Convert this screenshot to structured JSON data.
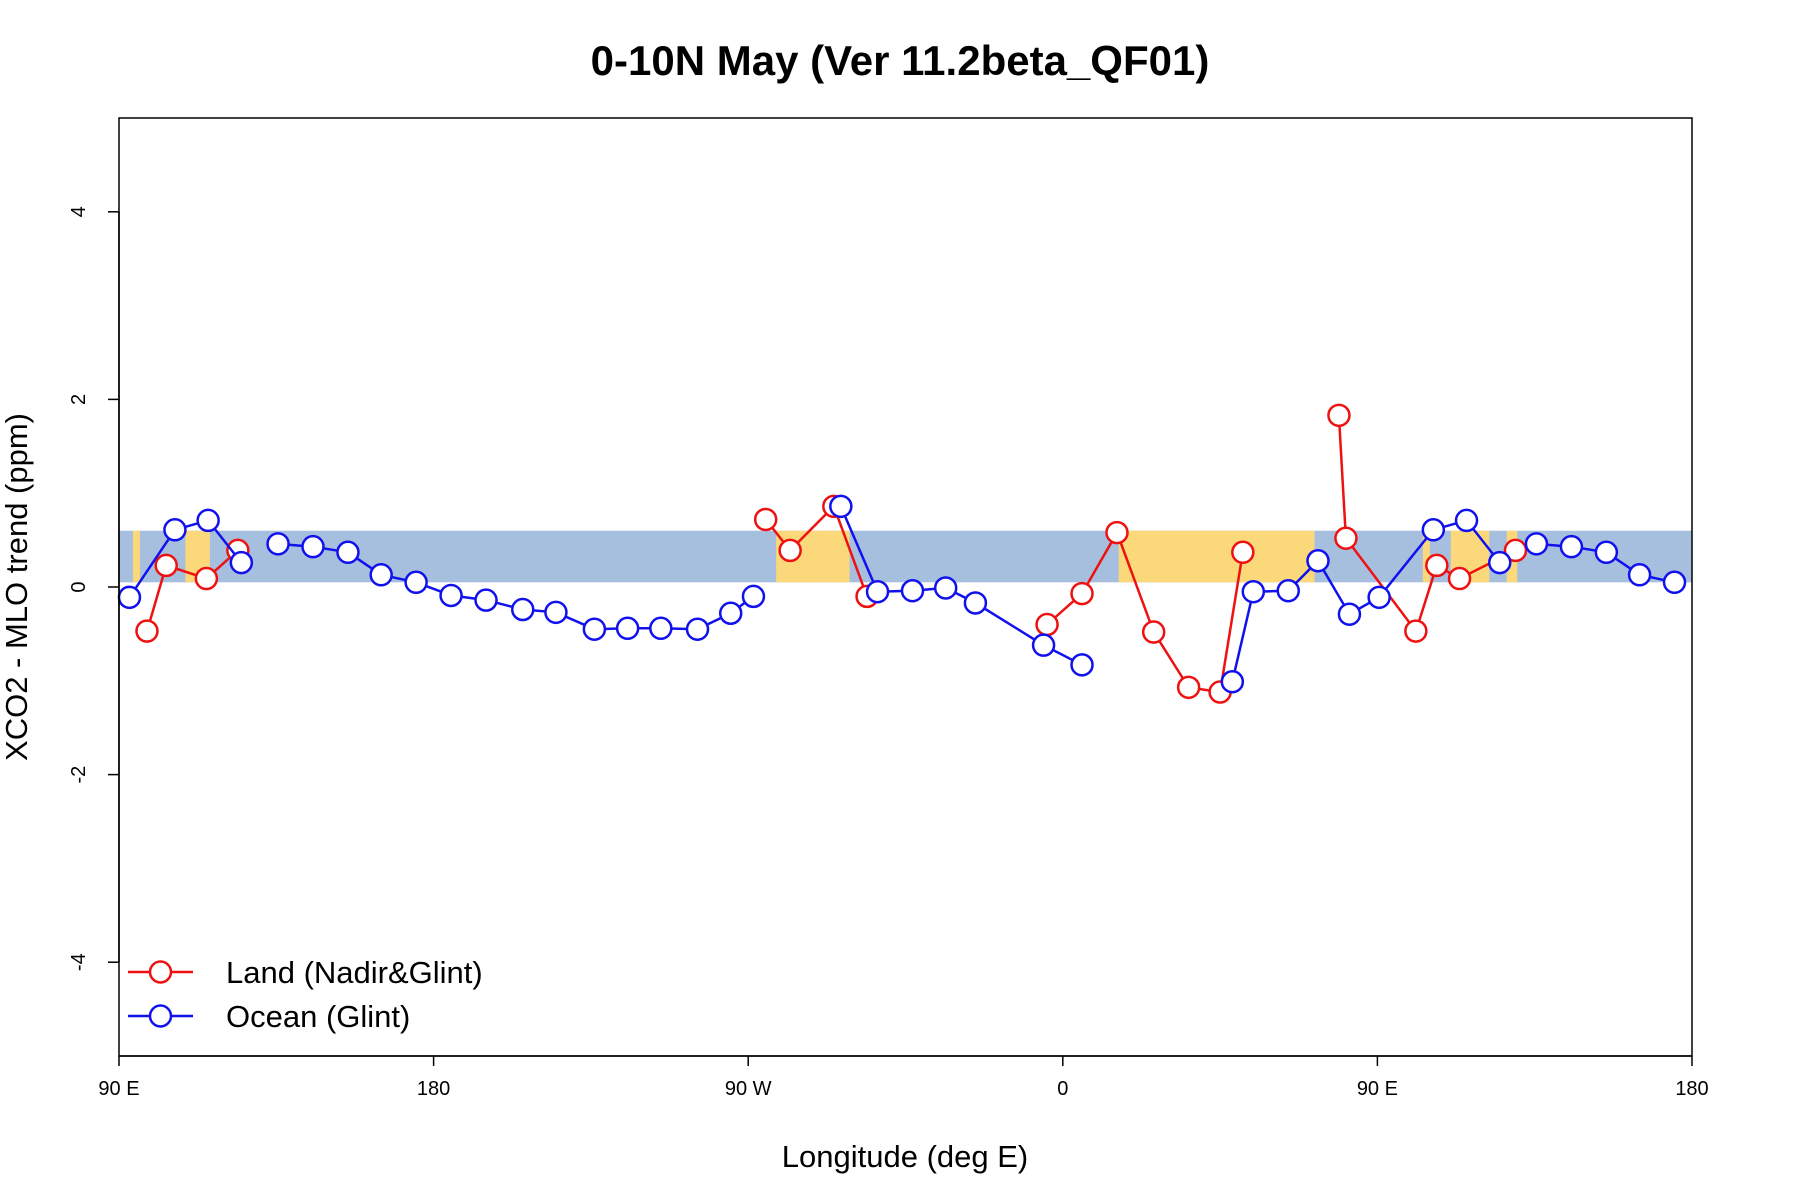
{
  "chart_data": {
    "type": "line",
    "title": "0-10N May (Ver 11.2beta_QF01)",
    "xlabel": "Longitude (deg E)",
    "ylabel": "XCO2 - MLO trend (ppm)",
    "xlim": [
      90,
      540
    ],
    "ylim": [
      -5,
      5
    ],
    "x_ticks": [
      {
        "value": 90,
        "label": "90 E"
      },
      {
        "value": 180,
        "label": "180"
      },
      {
        "value": 270,
        "label": "90 W"
      },
      {
        "value": 360,
        "label": "0"
      },
      {
        "value": 450,
        "label": "90 E"
      },
      {
        "value": 540,
        "label": "180"
      }
    ],
    "y_ticks": [
      {
        "value": -4,
        "label": "-4"
      },
      {
        "value": -2,
        "label": "-2"
      },
      {
        "value": 0,
        "label": "0"
      },
      {
        "value": 2,
        "label": "2"
      },
      {
        "value": 4,
        "label": "4"
      }
    ],
    "band": {
      "y0": 0.05,
      "y1": 0.6,
      "ocean_color": "#a7bfdf",
      "land_color": "#fbd97a"
    },
    "land_regions": [
      [
        94,
        96
      ],
      [
        109,
        116
      ],
      [
        278,
        290
      ],
      [
        290,
        299
      ],
      [
        376,
        432
      ],
      [
        463,
        465
      ],
      [
        471,
        482
      ],
      [
        487,
        490
      ]
    ],
    "legend_position": "bottom-left",
    "series": [
      {
        "name": "Land (Nadir&Glint)",
        "color": "#ee1111",
        "segments": [
          {
            "x": [
              98,
              103.5,
              115,
              124
            ],
            "y": [
              -0.47,
              0.23,
              0.09,
              0.39
            ]
          },
          {
            "x": [
              275,
              282,
              294.5,
              304
            ],
            "y": [
              0.72,
              0.39,
              0.86,
              -0.1
            ]
          },
          {
            "x": [
              355.5,
              365.5,
              375.5,
              386,
              396,
              405,
              411.5
            ],
            "y": [
              -0.4,
              -0.07,
              0.58,
              -0.48,
              -1.07,
              -1.12,
              0.37
            ]
          },
          {
            "x": [
              439,
              441,
              461,
              467,
              473.5,
              489.5
            ],
            "y": [
              1.83,
              0.52,
              -0.47,
              0.23,
              0.09,
              0.39
            ]
          }
        ]
      },
      {
        "name": "Ocean (Glint)",
        "color": "#1111ee",
        "segments": [
          {
            "x": [
              93,
              106,
              115.5,
              125
            ],
            "y": [
              -0.11,
              0.61,
              0.71,
              0.26
            ]
          },
          {
            "x": [
              135.5,
              145.5,
              155.5,
              165,
              175,
              185,
              195,
              205.5,
              215,
              226,
              235.5,
              245,
              255.5,
              265,
              271.5
            ],
            "y": [
              0.46,
              0.43,
              0.37,
              0.13,
              0.05,
              -0.09,
              -0.14,
              -0.24,
              -0.27,
              -0.45,
              -0.44,
              -0.44,
              -0.45,
              -0.28,
              -0.1
            ]
          },
          {
            "x": [
              296.5,
              307,
              317,
              326.5,
              335,
              354.5,
              365.5
            ],
            "y": [
              0.86,
              -0.05,
              -0.04,
              -0.01,
              -0.17,
              -0.62,
              -0.83
            ]
          },
          {
            "x": [
              408.5,
              414.5,
              424.5,
              433,
              442,
              450.5,
              466,
              475.5,
              485
            ],
            "y": [
              -1.01,
              -0.05,
              -0.04,
              0.28,
              -0.29,
              -0.11,
              0.61,
              0.71,
              0.26
            ]
          },
          {
            "x": [
              495.5,
              505.5,
              515.5,
              525,
              535
            ],
            "y": [
              0.46,
              0.43,
              0.37,
              0.13,
              0.05
            ]
          }
        ]
      }
    ]
  }
}
